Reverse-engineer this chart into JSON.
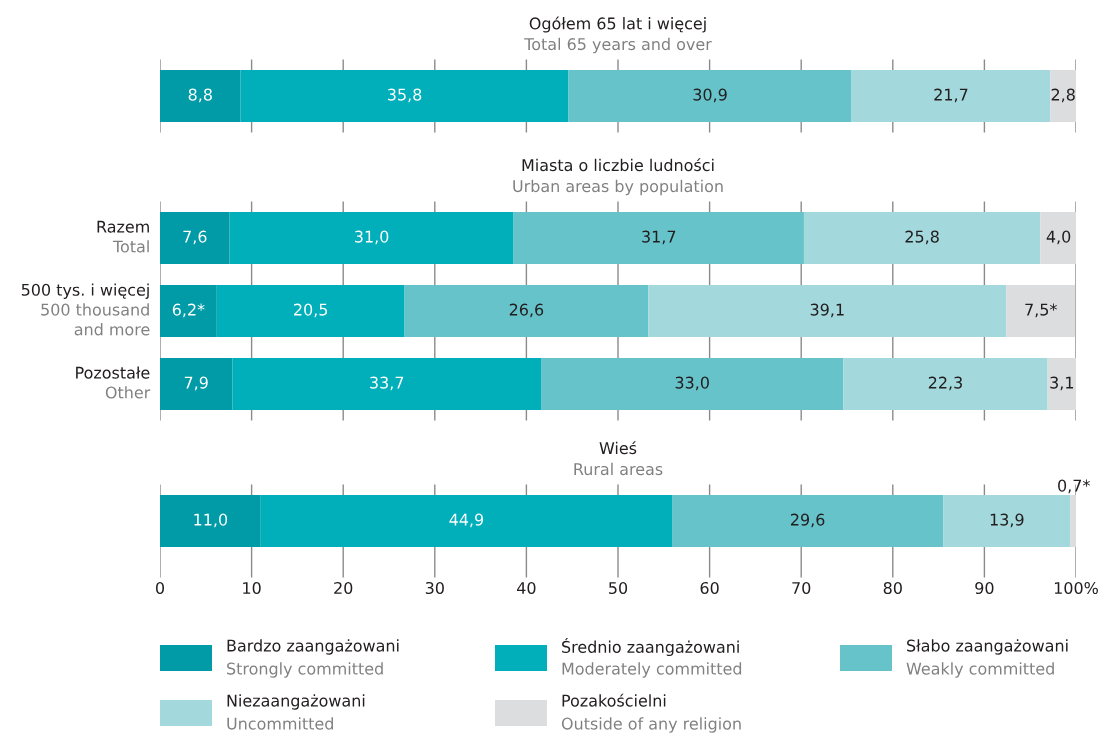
{
  "chart_data": [
    {
      "type": "bar",
      "orientation": "horizontal",
      "stacked": true,
      "title": "Ogółem 65 lat i więcej",
      "subtitle": "Total 65 years and over",
      "categories": [
        null
      ],
      "xlim": [
        0,
        100
      ],
      "xticks": [
        0,
        10,
        20,
        30,
        40,
        50,
        60,
        70,
        80,
        90,
        100
      ],
      "tick_labels": false,
      "grid": "x",
      "series": [
        {
          "color": "#009ba6",
          "values": [
            8.8
          ],
          "value_labels": [
            "8,8"
          ]
        },
        {
          "color": "#00afba",
          "values": [
            35.8
          ],
          "value_labels": [
            "35,8"
          ]
        },
        {
          "color": "#66c3ca",
          "values": [
            30.9
          ],
          "value_labels": [
            "30,9"
          ]
        },
        {
          "color": "#a3d8dc",
          "values": [
            21.7
          ],
          "value_labels": [
            "21,7"
          ]
        },
        {
          "color": "#dcdddf",
          "values": [
            2.8
          ],
          "value_labels": [
            "2,8"
          ]
        }
      ]
    },
    {
      "type": "bar",
      "orientation": "horizontal",
      "stacked": true,
      "title": "Miasta o liczbie ludności",
      "subtitle": "Urban areas by population",
      "categories": [
        "Razem\nTotal",
        "500 tys. i więcej\n500 thousand\nand more",
        "Pozostałe\nOther"
      ],
      "xlim": [
        0,
        100
      ],
      "xticks": [
        0,
        10,
        20,
        30,
        40,
        50,
        60,
        70,
        80,
        90,
        100
      ],
      "tick_labels": "y",
      "grid": "x",
      "series": [
        {
          "color": "#009ba6",
          "values": [
            7.6,
            6.2,
            7.9
          ],
          "value_labels": [
            "7,6",
            "6,2*",
            "7,9"
          ]
        },
        {
          "color": "#00afba",
          "values": [
            31.0,
            20.5,
            33.7
          ],
          "value_labels": [
            "31,0",
            "20,5",
            "33,7"
          ]
        },
        {
          "color": "#66c3ca",
          "values": [
            31.7,
            26.6,
            33.0
          ],
          "value_labels": [
            "31,7",
            "26,6",
            "33,0"
          ]
        },
        {
          "color": "#a3d8dc",
          "values": [
            25.8,
            39.1,
            22.3
          ],
          "value_labels": [
            "25,8",
            "39,1",
            "22,3"
          ]
        },
        {
          "color": "#dcdddf",
          "values": [
            4.0,
            7.5,
            3.1
          ],
          "value_labels": [
            "4,0",
            "7,5*",
            "3,1"
          ]
        }
      ]
    },
    {
      "type": "bar",
      "orientation": "horizontal",
      "stacked": true,
      "title": "Wieś",
      "subtitle": "Rural areas",
      "categories": [
        null
      ],
      "xlim": [
        0,
        100
      ],
      "xticks": [
        0,
        10,
        20,
        30,
        40,
        50,
        60,
        70,
        80,
        90,
        {
          "value": 100,
          "label": "100%"
        }
      ],
      "tick_labels": "x",
      "grid": "x",
      "legend": "bottom",
      "series": [
        {
          "name": "Bardzo zaangażowani\nStrongly committed",
          "color": "#009ba6",
          "values": [
            11.0
          ],
          "value_labels": [
            "11,0"
          ]
        },
        {
          "name": "Średnio zaangażowani\nModerately committed",
          "color": "#00afba",
          "values": [
            44.9
          ],
          "value_labels": [
            "44,9"
          ]
        },
        {
          "name": "Słabo zaangażowani\nWeakly committed",
          "color": "#66c3ca",
          "values": [
            29.6
          ],
          "value_labels": [
            "29,6"
          ]
        },
        {
          "name": "Niezaangażowani\nUncommitted",
          "color": "#a3d8dc",
          "values": [
            13.9
          ],
          "value_labels": [
            "13,9"
          ]
        },
        {
          "name": "Pozakościelni\nOutside of any religion",
          "color": "#dcdddf",
          "values": [
            0.7
          ],
          "value_labels": [
            "0,7*"
          ]
        }
      ]
    }
  ]
}
